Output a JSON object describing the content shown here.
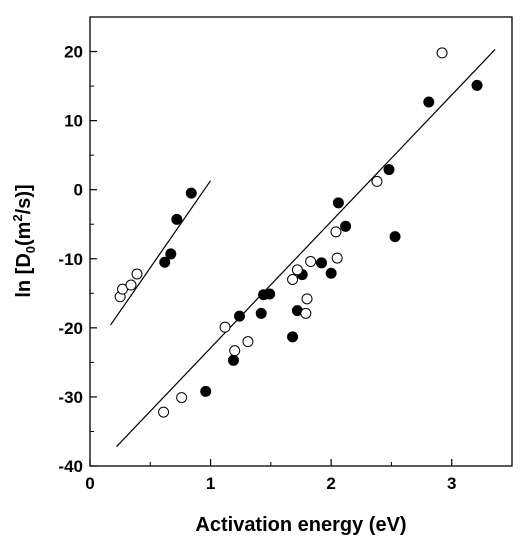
{
  "chart_data": {
    "type": "scatter",
    "title": "",
    "xlabel": "Activation energy (eV)",
    "ylabel": {
      "prefix": "ln [D",
      "sub": "0",
      "mid": "(m",
      "sup": "2",
      "suffix": "/s)]"
    },
    "xlim": [
      0,
      3.5
    ],
    "ylim": [
      -40,
      25
    ],
    "x_ticks": [
      0,
      1,
      2,
      3
    ],
    "y_ticks": [
      -40,
      -30,
      -20,
      -10,
      0,
      10,
      20
    ],
    "grid": false,
    "legend": "none",
    "series": [
      {
        "marker": "filled-circle",
        "color": "#000000",
        "points": [
          [
            0.62,
            -10.5
          ],
          [
            0.67,
            -9.3
          ],
          [
            0.72,
            -4.3
          ],
          [
            0.84,
            -0.5
          ],
          [
            0.96,
            -29.2
          ],
          [
            1.19,
            -24.7
          ],
          [
            1.24,
            -18.3
          ],
          [
            1.42,
            -17.9
          ],
          [
            1.44,
            -15.2
          ],
          [
            1.49,
            -15.1
          ],
          [
            1.68,
            -21.3
          ],
          [
            1.72,
            -17.5
          ],
          [
            1.76,
            -12.3
          ],
          [
            1.92,
            -10.6
          ],
          [
            2.0,
            -12.1
          ],
          [
            2.06,
            -1.9
          ],
          [
            2.12,
            -5.3
          ],
          [
            2.48,
            2.9
          ],
          [
            2.53,
            -6.8
          ],
          [
            2.81,
            12.7
          ],
          [
            3.21,
            15.1
          ]
        ]
      },
      {
        "marker": "open-circle",
        "color": "#000000",
        "points": [
          [
            0.25,
            -15.5
          ],
          [
            0.27,
            -14.4
          ],
          [
            0.34,
            -13.8
          ],
          [
            0.39,
            -12.2
          ],
          [
            0.61,
            -32.2
          ],
          [
            0.76,
            -30.1
          ],
          [
            1.12,
            -19.9
          ],
          [
            1.2,
            -23.3
          ],
          [
            1.31,
            -22.0
          ],
          [
            1.68,
            -13.0
          ],
          [
            1.72,
            -11.6
          ],
          [
            1.79,
            -17.9
          ],
          [
            1.8,
            -15.8
          ],
          [
            1.83,
            -10.4
          ],
          [
            2.04,
            -6.1
          ],
          [
            2.05,
            -9.9
          ],
          [
            2.38,
            1.2
          ],
          [
            2.92,
            19.8
          ]
        ]
      }
    ],
    "fit_lines": [
      {
        "x": [
          0.17,
          1.0
        ],
        "y": [
          -19.6,
          1.3
        ]
      },
      {
        "x": [
          0.22,
          3.36
        ],
        "y": [
          -37.2,
          20.3
        ]
      }
    ]
  }
}
